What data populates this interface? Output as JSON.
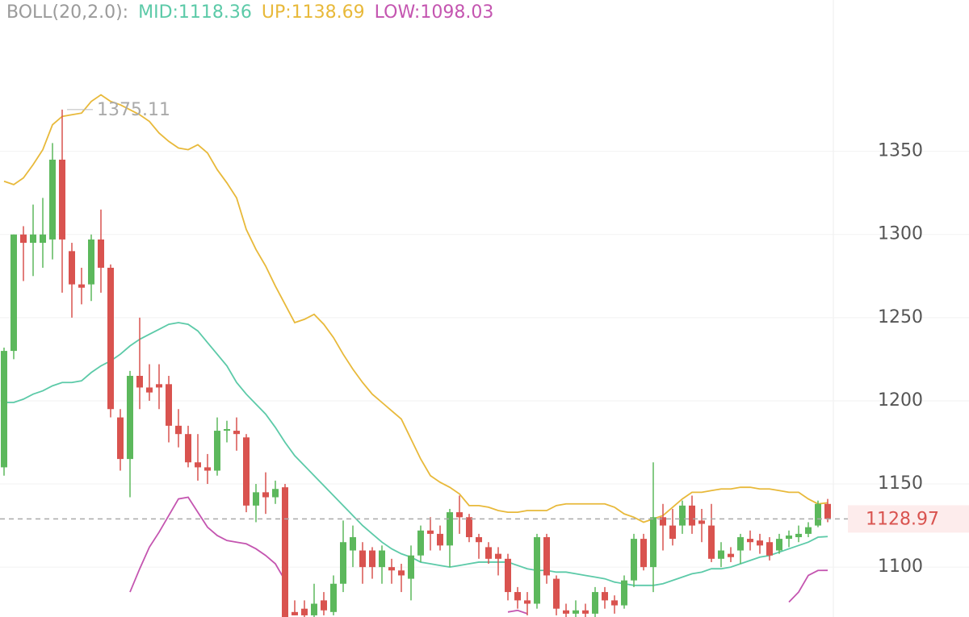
{
  "chart_data": {
    "type": "candlestick",
    "indicator": "BOLL(20,2.0):",
    "ylim": [
      1070,
      1441
    ],
    "yticks": [
      1100,
      1150,
      1200,
      1250,
      1300,
      1350
    ],
    "grid": true,
    "up_color": "#5cb85c",
    "down_color": "#d9534f",
    "open": [
      1160,
      1230,
      1300,
      1295,
      1295,
      1297,
      1345,
      1290,
      1270,
      1270,
      1297,
      1280,
      1190,
      1165,
      1215,
      1208,
      1210,
      1210,
      1185,
      1180,
      1163,
      1160,
      1158,
      1182,
      1182,
      1178,
      1137,
      1145,
      1142,
      1148,
      1073,
      1075,
      1071,
      1080,
      1073,
      1090,
      1110,
      1110,
      1110,
      1100,
      1100,
      1098,
      1093,
      1107,
      1122,
      1120,
      1113,
      1133,
      1130,
      1118,
      1112,
      1108,
      1105,
      1085,
      1080,
      1078,
      1118,
      1093,
      1074,
      1072,
      1074,
      1072,
      1085,
      1080,
      1077,
      1092,
      1117,
      1100,
      1130,
      1125,
      1125,
      1137,
      1128,
      1125,
      1105,
      1108,
      1110,
      1117,
      1116,
      1115,
      1110,
      1117,
      1118,
      1120,
      1125,
      1138
    ],
    "high": [
      1232,
      1300,
      1305,
      1318,
      1322,
      1355,
      1375.11,
      1295,
      1280,
      1300,
      1315,
      1282,
      1195,
      1218,
      1250,
      1222,
      1222,
      1215,
      1195,
      1185,
      1180,
      1168,
      1190,
      1188,
      1190,
      1180,
      1150,
      1157,
      1152,
      1150,
      1080,
      1080,
      1090,
      1085,
      1095,
      1128,
      1125,
      1115,
      1112,
      1113,
      1105,
      1102,
      1113,
      1125,
      1130,
      1125,
      1135,
      1143,
      1132,
      1120,
      1115,
      1112,
      1108,
      1088,
      1085,
      1120,
      1120,
      1095,
      1078,
      1080,
      1078,
      1088,
      1088,
      1083,
      1095,
      1120,
      1120,
      1163,
      1138,
      1135,
      1140,
      1143,
      1135,
      1138,
      1115,
      1112,
      1120,
      1122,
      1120,
      1118,
      1120,
      1122,
      1125,
      1127,
      1140,
      1141
    ],
    "low": [
      1155,
      1225,
      1272,
      1275,
      1280,
      1285,
      1265,
      1250,
      1258,
      1260,
      1265,
      1190,
      1158,
      1142,
      1195,
      1200,
      1195,
      1175,
      1172,
      1160,
      1152,
      1150,
      1155,
      1175,
      1170,
      1133,
      1127,
      1132,
      1138,
      1070,
      1071,
      1070,
      1070,
      1071,
      1071,
      1085,
      1100,
      1090,
      1093,
      1090,
      1090,
      1085,
      1080,
      1103,
      1110,
      1110,
      1100,
      1120,
      1115,
      1105,
      1102,
      1095,
      1080,
      1075,
      1071,
      1075,
      1090,
      1071,
      1070,
      1070,
      1070,
      1070,
      1075,
      1072,
      1075,
      1088,
      1098,
      1085,
      1110,
      1113,
      1120,
      1120,
      1115,
      1103,
      1100,
      1103,
      1102,
      1110,
      1108,
      1104,
      1108,
      1112,
      1115,
      1118,
      1124,
      1127
    ],
    "close": [
      1230,
      1300,
      1295,
      1300,
      1300,
      1345,
      1297,
      1270,
      1268,
      1297,
      1280,
      1195,
      1165,
      1215,
      1208,
      1205,
      1208,
      1185,
      1180,
      1163,
      1160,
      1158,
      1182,
      1183,
      1180,
      1137,
      1145,
      1142,
      1147,
      1070,
      1071,
      1071,
      1078,
      1074,
      1090,
      1115,
      1118,
      1100,
      1100,
      1110,
      1098,
      1095,
      1107,
      1122,
      1120,
      1113,
      1133,
      1130,
      1118,
      1115,
      1105,
      1105,
      1085,
      1080,
      1078,
      1118,
      1095,
      1075,
      1072,
      1074,
      1072,
      1085,
      1080,
      1077,
      1092,
      1117,
      1100,
      1130,
      1125,
      1117,
      1137,
      1125,
      1126,
      1105,
      1110,
      1106,
      1118,
      1115,
      1113,
      1107,
      1117,
      1119,
      1120,
      1124,
      1138,
      1128.97
    ],
    "bands": [
      {
        "name": "MID:1118.36",
        "color": "#5ccaa8",
        "values": [
          1199,
          1199,
          1201,
          1204,
          1206,
          1209,
          1211,
          1211,
          1212,
          1217,
          1221,
          1224,
          1228,
          1233,
          1237,
          1240,
          1243,
          1246,
          1247,
          1246,
          1242,
          1235,
          1228,
          1221,
          1211,
          1204,
          1198,
          1192,
          1184,
          1175,
          1167,
          1161,
          1155,
          1149,
          1143,
          1137,
          1131,
          1125,
          1120,
          1115,
          1111,
          1108,
          1106,
          1103,
          1102,
          1101,
          1100,
          1101,
          1102,
          1103,
          1103,
          1103,
          1103,
          1101,
          1099,
          1098,
          1098,
          1097,
          1097,
          1096,
          1095,
          1094,
          1093,
          1091,
          1090,
          1089,
          1089,
          1089,
          1090,
          1092,
          1094,
          1096,
          1097,
          1099,
          1099,
          1100,
          1102,
          1104,
          1106,
          1107,
          1109,
          1111,
          1113,
          1115,
          1118,
          1118.36
        ]
      },
      {
        "name": "UP:1138.69",
        "color": "#e8b93a",
        "values": [
          1332,
          1330,
          1334,
          1342,
          1351,
          1366,
          1371,
          1372,
          1373,
          1380,
          1384,
          1380,
          1378,
          1375,
          1372,
          1368,
          1361,
          1356,
          1352,
          1351,
          1354,
          1349,
          1339,
          1331,
          1322,
          1303,
          1291,
          1281,
          1269,
          1258,
          1247,
          1249,
          1252,
          1246,
          1238,
          1228,
          1219,
          1211,
          1204,
          1199,
          1194,
          1189,
          1177,
          1165,
          1155,
          1151,
          1148,
          1144,
          1137,
          1137,
          1136,
          1134,
          1133,
          1133,
          1134,
          1134,
          1134,
          1137,
          1138,
          1138,
          1138,
          1138,
          1138,
          1136,
          1132,
          1130,
          1127,
          1129,
          1131,
          1136,
          1141,
          1145,
          1145,
          1146,
          1147,
          1147,
          1148,
          1148,
          1147,
          1147,
          1146,
          1145,
          1145,
          1141,
          1138,
          1138.69
        ]
      },
      {
        "name": "LOW:1098.03",
        "color": "#c455b0",
        "values": [
          null,
          null,
          null,
          null,
          null,
          null,
          null,
          null,
          null,
          null,
          null,
          null,
          null,
          1085,
          1099,
          1112,
          1121,
          1131,
          1141,
          1142,
          1133,
          1124,
          1119,
          1116,
          1115,
          1114,
          1111,
          1107,
          1102,
          1092,
          null,
          null,
          null,
          null,
          null,
          null,
          null,
          null,
          null,
          null,
          null,
          null,
          null,
          null,
          null,
          null,
          null,
          null,
          null,
          null,
          null,
          null,
          1073,
          1074,
          1072,
          null,
          null,
          null,
          null,
          null,
          null,
          null,
          null,
          null,
          null,
          null,
          null,
          null,
          null,
          null,
          null,
          null,
          null,
          null,
          null,
          null,
          null,
          null,
          null,
          null,
          null,
          1079,
          1085,
          1095,
          1098,
          1098.03
        ]
      }
    ]
  }
}
